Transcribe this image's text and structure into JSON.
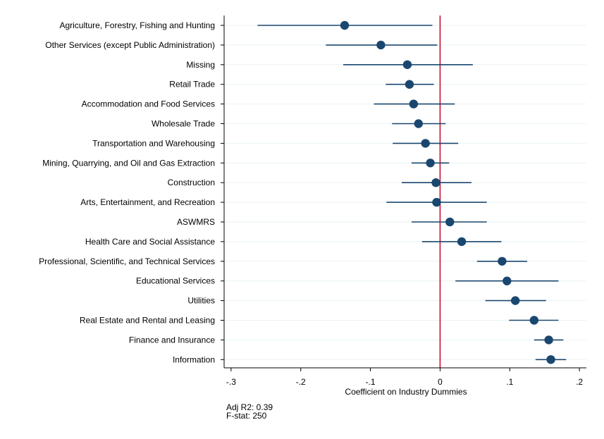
{
  "chart_data": {
    "type": "scatter",
    "subtype": "coefficient-plot-with-confidence-intervals",
    "xlabel": "Coefficient on Industry Dummies",
    "xlim": [
      -0.31,
      0.21
    ],
    "xticks": [
      -0.3,
      -0.2,
      -0.1,
      0,
      0.1,
      0.2
    ],
    "xtick_labels": [
      "-.3",
      "-.2",
      "-.1",
      "0",
      ".1",
      ".2"
    ],
    "reference_line": {
      "x": 0,
      "color": "#c8102e"
    },
    "marker_color": "#1a476f",
    "grid": true,
    "categories": [
      "Agriculture, Forestry, Fishing and Hunting",
      "Other Services (except Public Administration)",
      "Missing",
      "Retail Trade",
      "Accommodation and Food Services",
      "Wholesale Trade",
      "Transportation and Warehousing",
      "Mining, Quarrying, and Oil and Gas Extraction",
      "Construction",
      "Arts, Entertainment, and Recreation",
      "ASWMRS",
      "Health Care and Social Assistance",
      "Professional, Scientific, and Technical Services",
      "Educational Services",
      "Utilities",
      "Real Estate and Rental and Leasing",
      "Finance and Insurance",
      "Information"
    ],
    "estimates": [
      -0.137,
      -0.085,
      -0.047,
      -0.044,
      -0.038,
      -0.031,
      -0.021,
      -0.014,
      -0.006,
      -0.005,
      0.014,
      0.031,
      0.089,
      0.096,
      0.108,
      0.135,
      0.156,
      0.159
    ],
    "ci_low": [
      -0.262,
      -0.164,
      -0.139,
      -0.078,
      -0.095,
      -0.069,
      -0.068,
      -0.041,
      -0.055,
      -0.077,
      -0.041,
      -0.026,
      0.053,
      0.022,
      0.065,
      0.099,
      0.135,
      0.137
    ],
    "ci_high": [
      -0.011,
      -0.004,
      0.047,
      -0.009,
      0.021,
      0.008,
      0.026,
      0.013,
      0.045,
      0.067,
      0.067,
      0.088,
      0.125,
      0.17,
      0.152,
      0.17,
      0.177,
      0.181
    ]
  },
  "notes": {
    "adj_r2": "Adj R2: 0.39",
    "f_stat": "F-stat: 250"
  }
}
